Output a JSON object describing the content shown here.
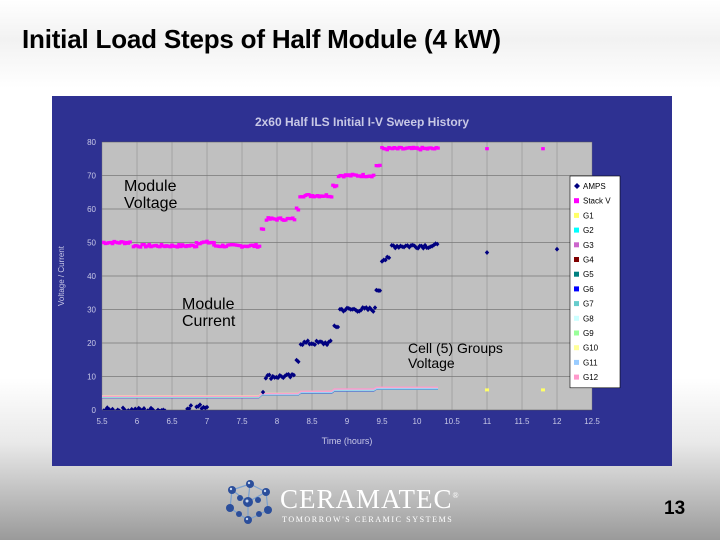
{
  "slide": {
    "title": "Initial Load Steps of Half Module (4 kW)",
    "page_number": "13",
    "logo": {
      "name": "CERAMATEC",
      "mark": "®",
      "tagline": "TOMORROW'S CERAMIC SYSTEMS"
    }
  },
  "annotations": {
    "module_voltage": "Module\nVoltage",
    "module_current": "Module\nCurrent",
    "cell_groups": "Cell (5) Groups\nVoltage"
  },
  "colors": {
    "panel": "#2e3192",
    "plot_bg": "#c0c0c0",
    "amps": "#000080",
    "stack_v": "#ff00ff",
    "g1": "#ffff66",
    "g2": "#00ffff",
    "g3": "#cc66cc",
    "g4": "#800000",
    "g5": "#008080",
    "g6": "#0000ff",
    "g7": "#66cccc",
    "g8": "#ccffff",
    "g9": "#99ff99",
    "g10": "#ffff99",
    "g11": "#99ccff",
    "g12": "#ff99cc"
  },
  "chart_data": {
    "type": "scatter",
    "title": "2x60 Half ILS Initial I-V Sweep History",
    "xlabel": "Time (hours)",
    "ylabel": "Voltage / Current",
    "xlim": [
      5.5,
      12.5
    ],
    "ylim": [
      0,
      80
    ],
    "x_ticks": [
      "5.5",
      "6",
      "6.5",
      "7",
      "7.5",
      "8",
      "8.5",
      "9",
      "9.5",
      "10",
      "10.5",
      "11",
      "11.5",
      "12",
      "12.5"
    ],
    "y_ticks": [
      "0",
      "10",
      "20",
      "30",
      "40",
      "50",
      "60",
      "70",
      "80"
    ],
    "grid": true,
    "legend_position": "right",
    "series": [
      {
        "name": "AMPS",
        "segments": [
          {
            "x": [
              5.5,
              6.4
            ],
            "y": 0
          },
          {
            "x": [
              6.72,
              6.78
            ],
            "y": 1
          },
          {
            "x": [
              6.85,
              7.0
            ],
            "y": 1
          },
          {
            "x": [
              7.8,
              7.82
            ],
            "y": 6
          },
          {
            "x": [
              7.84,
              8.25
            ],
            "y": 10
          },
          {
            "x": [
              8.28,
              8.32
            ],
            "y": 15
          },
          {
            "x": [
              8.34,
              8.78
            ],
            "y": 20
          },
          {
            "x": [
              8.82,
              8.88
            ],
            "y": 25
          },
          {
            "x": [
              8.9,
              9.4
            ],
            "y": 30
          },
          {
            "x": [
              9.42,
              9.48
            ],
            "y": 36
          },
          {
            "x": [
              9.5,
              9.62
            ],
            "y": 45
          },
          {
            "x": [
              9.64,
              10.3
            ],
            "y": 49
          }
        ],
        "points": [
          [
            11.0,
            47
          ],
          [
            12.0,
            48
          ]
        ]
      },
      {
        "name": "Stack V",
        "segments": [
          {
            "x": [
              5.5,
              5.9
            ],
            "y": 50
          },
          {
            "x": [
              5.95,
              6.85
            ],
            "y": 49
          },
          {
            "x": [
              6.85,
              7.1
            ],
            "y": 50
          },
          {
            "x": [
              7.1,
              7.75
            ],
            "y": 49
          },
          {
            "x": [
              7.78,
              7.82
            ],
            "y": 54
          },
          {
            "x": [
              7.85,
              8.25
            ],
            "y": 57
          },
          {
            "x": [
              8.28,
              8.32
            ],
            "y": 60
          },
          {
            "x": [
              8.33,
              8.78
            ],
            "y": 64
          },
          {
            "x": [
              8.8,
              8.86
            ],
            "y": 67
          },
          {
            "x": [
              8.88,
              9.4
            ],
            "y": 70
          },
          {
            "x": [
              9.42,
              9.48
            ],
            "y": 73
          },
          {
            "x": [
              9.5,
              10.3
            ],
            "y": 78
          }
        ],
        "points": [
          [
            11.0,
            78
          ],
          [
            11.8,
            78
          ]
        ]
      },
      {
        "name": "G1",
        "start": 4.0,
        "end": 6.5,
        "outliers": [
          [
            11.0,
            6
          ],
          [
            11.8,
            6
          ]
        ]
      },
      {
        "name": "G2",
        "start": 3.8,
        "end": 6.3
      },
      {
        "name": "G3",
        "start": 4.1,
        "end": 6.7
      },
      {
        "name": "G4",
        "start": 3.9,
        "end": 6.4
      },
      {
        "name": "G5",
        "start": 4.0,
        "end": 6.5
      },
      {
        "name": "G6",
        "start": 3.7,
        "end": 6.2
      },
      {
        "name": "G7",
        "start": 3.9,
        "end": 6.4
      },
      {
        "name": "G8",
        "start": 4.0,
        "end": 6.5
      },
      {
        "name": "G9",
        "start": 3.8,
        "end": 6.3
      },
      {
        "name": "G10",
        "start": 4.2,
        "end": 6.6
      },
      {
        "name": "G11",
        "start": 3.9,
        "end": 6.4
      },
      {
        "name": "G12",
        "start": 4.1,
        "end": 6.8
      }
    ],
    "legend": [
      "AMPS",
      "Stack V",
      "G1",
      "G2",
      "G3",
      "G4",
      "G5",
      "G6",
      "G7",
      "G8",
      "G9",
      "G10",
      "G11",
      "G12"
    ]
  }
}
